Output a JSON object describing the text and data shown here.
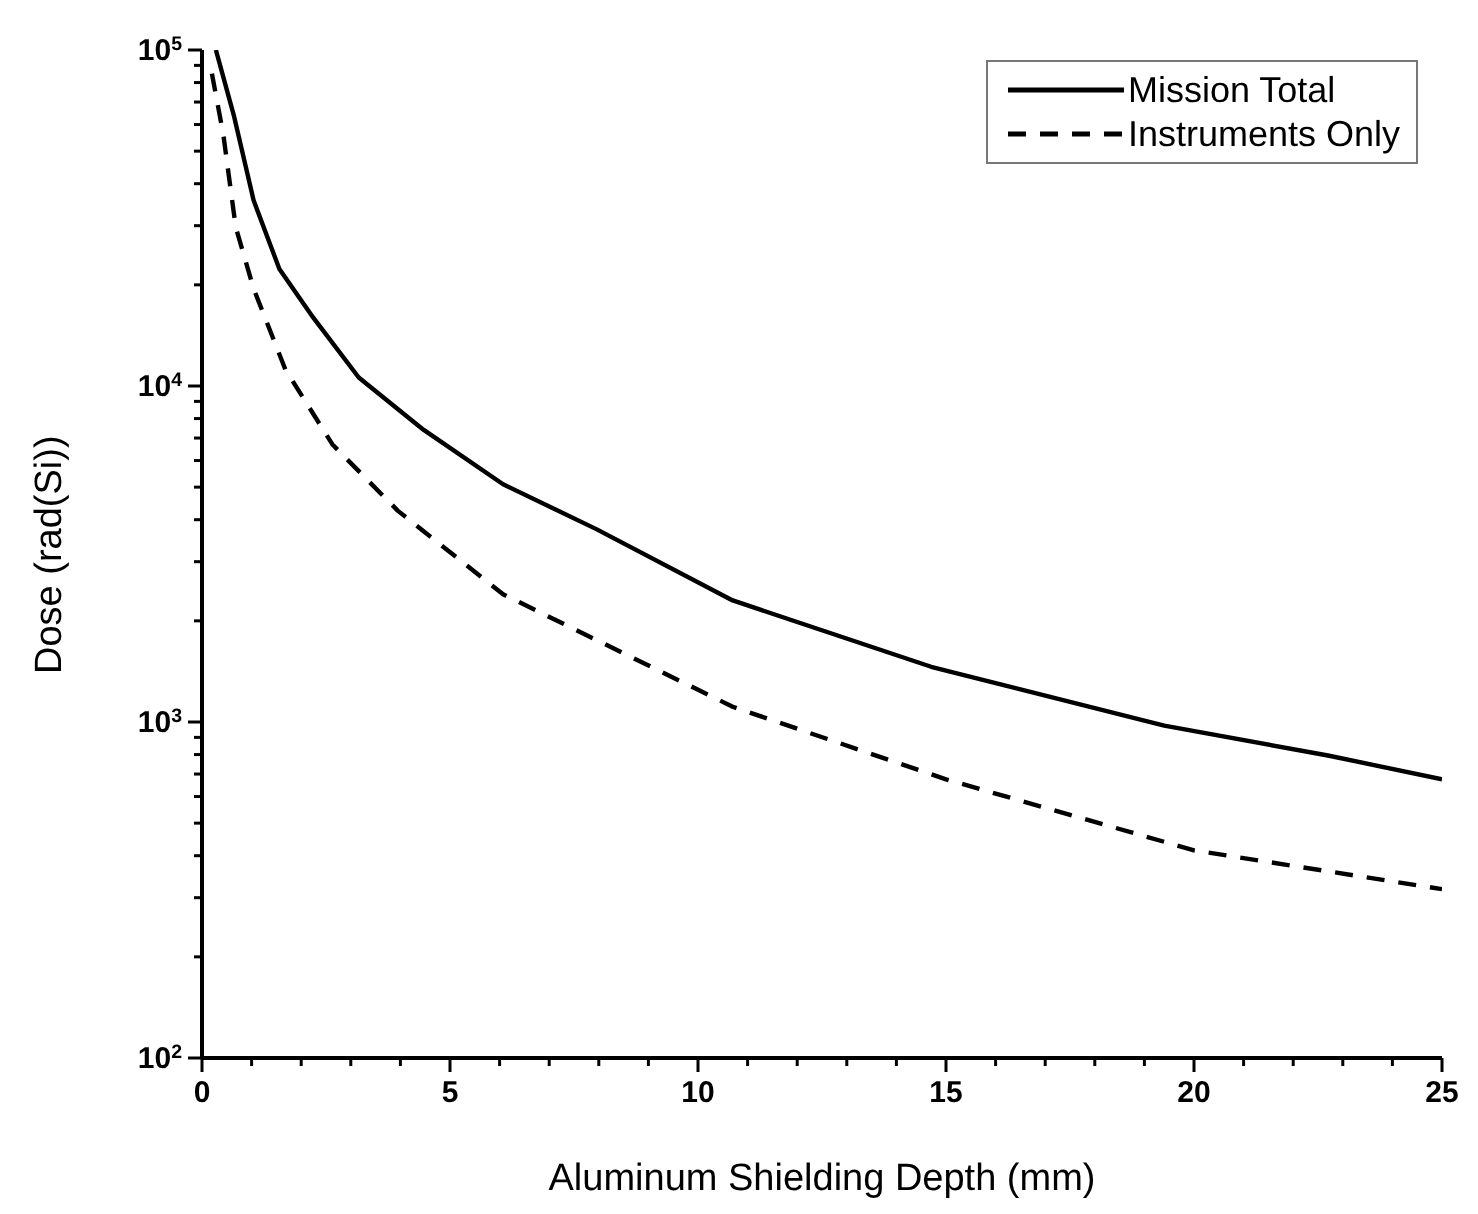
{
  "chart_data": {
    "type": "line",
    "xlabel": "Aluminum Shielding Depth (mm)",
    "ylabel": "Dose (rad(Si))",
    "log": "y",
    "xlim": [
      0,
      25
    ],
    "ylim": [
      100,
      100000
    ],
    "xticks": [
      0,
      {
        "value": 1,
        "label": null
      },
      {
        "value": 2,
        "label": null
      },
      {
        "value": 3,
        "label": null
      },
      {
        "value": 4,
        "label": null
      },
      5,
      {
        "value": 6,
        "label": null
      },
      {
        "value": 7,
        "label": null
      },
      {
        "value": 8,
        "label": null
      },
      {
        "value": 9,
        "label": null
      },
      10,
      {
        "value": 11,
        "label": null
      },
      {
        "value": 12,
        "label": null
      },
      {
        "value": 13,
        "label": null
      },
      {
        "value": 14,
        "label": null
      },
      15,
      {
        "value": 16,
        "label": null
      },
      {
        "value": 17,
        "label": null
      },
      {
        "value": 18,
        "label": null
      },
      {
        "value": 19,
        "label": null
      },
      20,
      {
        "value": 21,
        "label": null
      },
      {
        "value": 22,
        "label": null
      },
      {
        "value": 23,
        "label": null
      },
      {
        "value": 24,
        "label": null
      },
      25
    ],
    "yticks": [
      {
        "value": 100,
        "label": "10$^{2}$"
      },
      {
        "value": 200,
        "label": null
      },
      {
        "value": 300,
        "label": null
      },
      {
        "value": 400,
        "label": null
      },
      {
        "value": 500,
        "label": null
      },
      {
        "value": 600,
        "label": null
      },
      {
        "value": 700,
        "label": null
      },
      {
        "value": 800,
        "label": null
      },
      {
        "value": 900,
        "label": null
      },
      {
        "value": 1000,
        "label": "10$^{3}$"
      },
      {
        "value": 2000,
        "label": null
      },
      {
        "value": 3000,
        "label": null
      },
      {
        "value": 4000,
        "label": null
      },
      {
        "value": 5000,
        "label": null
      },
      {
        "value": 6000,
        "label": null
      },
      {
        "value": 7000,
        "label": null
      },
      {
        "value": 8000,
        "label": null
      },
      {
        "value": 9000,
        "label": null
      },
      {
        "value": 10000,
        "label": "10$^{4}$"
      },
      {
        "value": 20000,
        "label": null
      },
      {
        "value": 30000,
        "label": null
      },
      {
        "value": 40000,
        "label": null
      },
      {
        "value": 50000,
        "label": null
      },
      {
        "value": 60000,
        "label": null
      },
      {
        "value": 70000,
        "label": null
      },
      {
        "value": 80000,
        "label": null
      },
      {
        "value": 90000,
        "label": null
      },
      {
        "value": 100000,
        "label": "10$^{5}$"
      }
    ],
    "grid": false,
    "legend": "top right",
    "marker": "none",
    "series": [
      {
        "name": "Mission Total",
        "color": "#000000",
        "line_style": "solid",
        "x": [
          0.28,
          0.64,
          1.04,
          1.56,
          2.24,
          3.16,
          4.47,
          6.07,
          7.95,
          10.7,
          14.7,
          19.4,
          22.7,
          25
        ],
        "values": [
          100000,
          64000,
          35700,
          22300,
          16000,
          10600,
          7400,
          5100,
          3750,
          2300,
          1460,
          975,
          795,
          675
        ]
      },
      {
        "name": "Instruments Only",
        "color": "#000000",
        "line_style": "dashed",
        "x": [
          0.2,
          0.43,
          0.68,
          1.04,
          1.68,
          2.63,
          3.95,
          6.07,
          10.7,
          15,
          20,
          25
        ],
        "values": [
          85000,
          56000,
          29700,
          19500,
          11200,
          6700,
          4250,
          2400,
          1110,
          675,
          415,
          318
        ]
      }
    ]
  }
}
